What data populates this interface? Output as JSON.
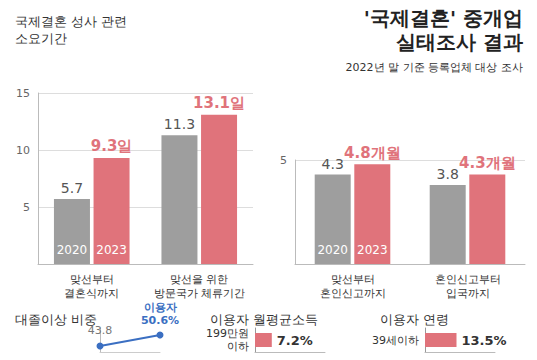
{
  "header": {
    "title": "'국제결혼' 중개업\n실태조사 결과",
    "subtitle": "2022년 말 기준 등록업체 대상 조사"
  },
  "chart_data": [
    {
      "type": "bar",
      "title": "국제결혼 성사 관련\n소요기간",
      "categories": [
        "맞선부터\n결혼식까지",
        "맞선을 위한\n방문국가 체류기간"
      ],
      "series": [
        {
          "name": "2020",
          "color": "#9e9e9e",
          "values": [
            5.7,
            11.3
          ],
          "value_labels": [
            "5.7",
            "11.3"
          ]
        },
        {
          "name": "2023",
          "color": "#e0737b",
          "values": [
            9.3,
            13.1
          ],
          "value_labels": [
            "9.3일",
            "13.1일"
          ]
        }
      ],
      "ylim": [
        0,
        15
      ],
      "yticks": [
        5,
        10,
        15
      ],
      "grid": true,
      "data_labels": true
    },
    {
      "type": "bar",
      "categories": [
        "맞선부터\n혼인신고까지",
        "혼인신고부터\n입국까지"
      ],
      "series": [
        {
          "name": "2020",
          "color": "#9e9e9e",
          "values": [
            4.3,
            3.8
          ],
          "value_labels": [
            "4.3",
            "3.8"
          ]
        },
        {
          "name": "2023",
          "color": "#e0737b",
          "values": [
            4.8,
            4.3
          ],
          "value_labels": [
            "4.8개월",
            "4.3개월"
          ]
        }
      ],
      "ylim": [
        0,
        5
      ],
      "yticks": [
        5
      ],
      "grid": true,
      "data_labels": true
    },
    {
      "type": "line",
      "title": "대졸이상 비중",
      "categories": [
        null,
        null
      ],
      "series": [
        {
          "name": "이용자",
          "color": "#3b6fc2",
          "values": [
            43.8,
            50.6
          ],
          "value_labels": [
            "43.8",
            "50.6%"
          ],
          "marker": "circle"
        }
      ],
      "ylim": [
        40,
        55
      ],
      "tick_labels": false,
      "data_labels": true
    },
    {
      "type": "bar",
      "orientation": "horizontal",
      "title": "이용자 월평균소득",
      "categories": [
        "199만원\n이하"
      ],
      "values": [
        7.2
      ],
      "value_labels": [
        "7.2%"
      ],
      "color": "#e0737b",
      "xlim": [
        0,
        30
      ],
      "tick_labels": "y",
      "data_labels": true
    },
    {
      "type": "bar",
      "orientation": "horizontal",
      "title": "이용자 연령",
      "categories": [
        "39세이하"
      ],
      "values": [
        13.5
      ],
      "value_labels": [
        "13.5%"
      ],
      "color": "#e0737b",
      "xlim": [
        0,
        30
      ],
      "tick_labels": "y",
      "data_labels": true
    }
  ]
}
